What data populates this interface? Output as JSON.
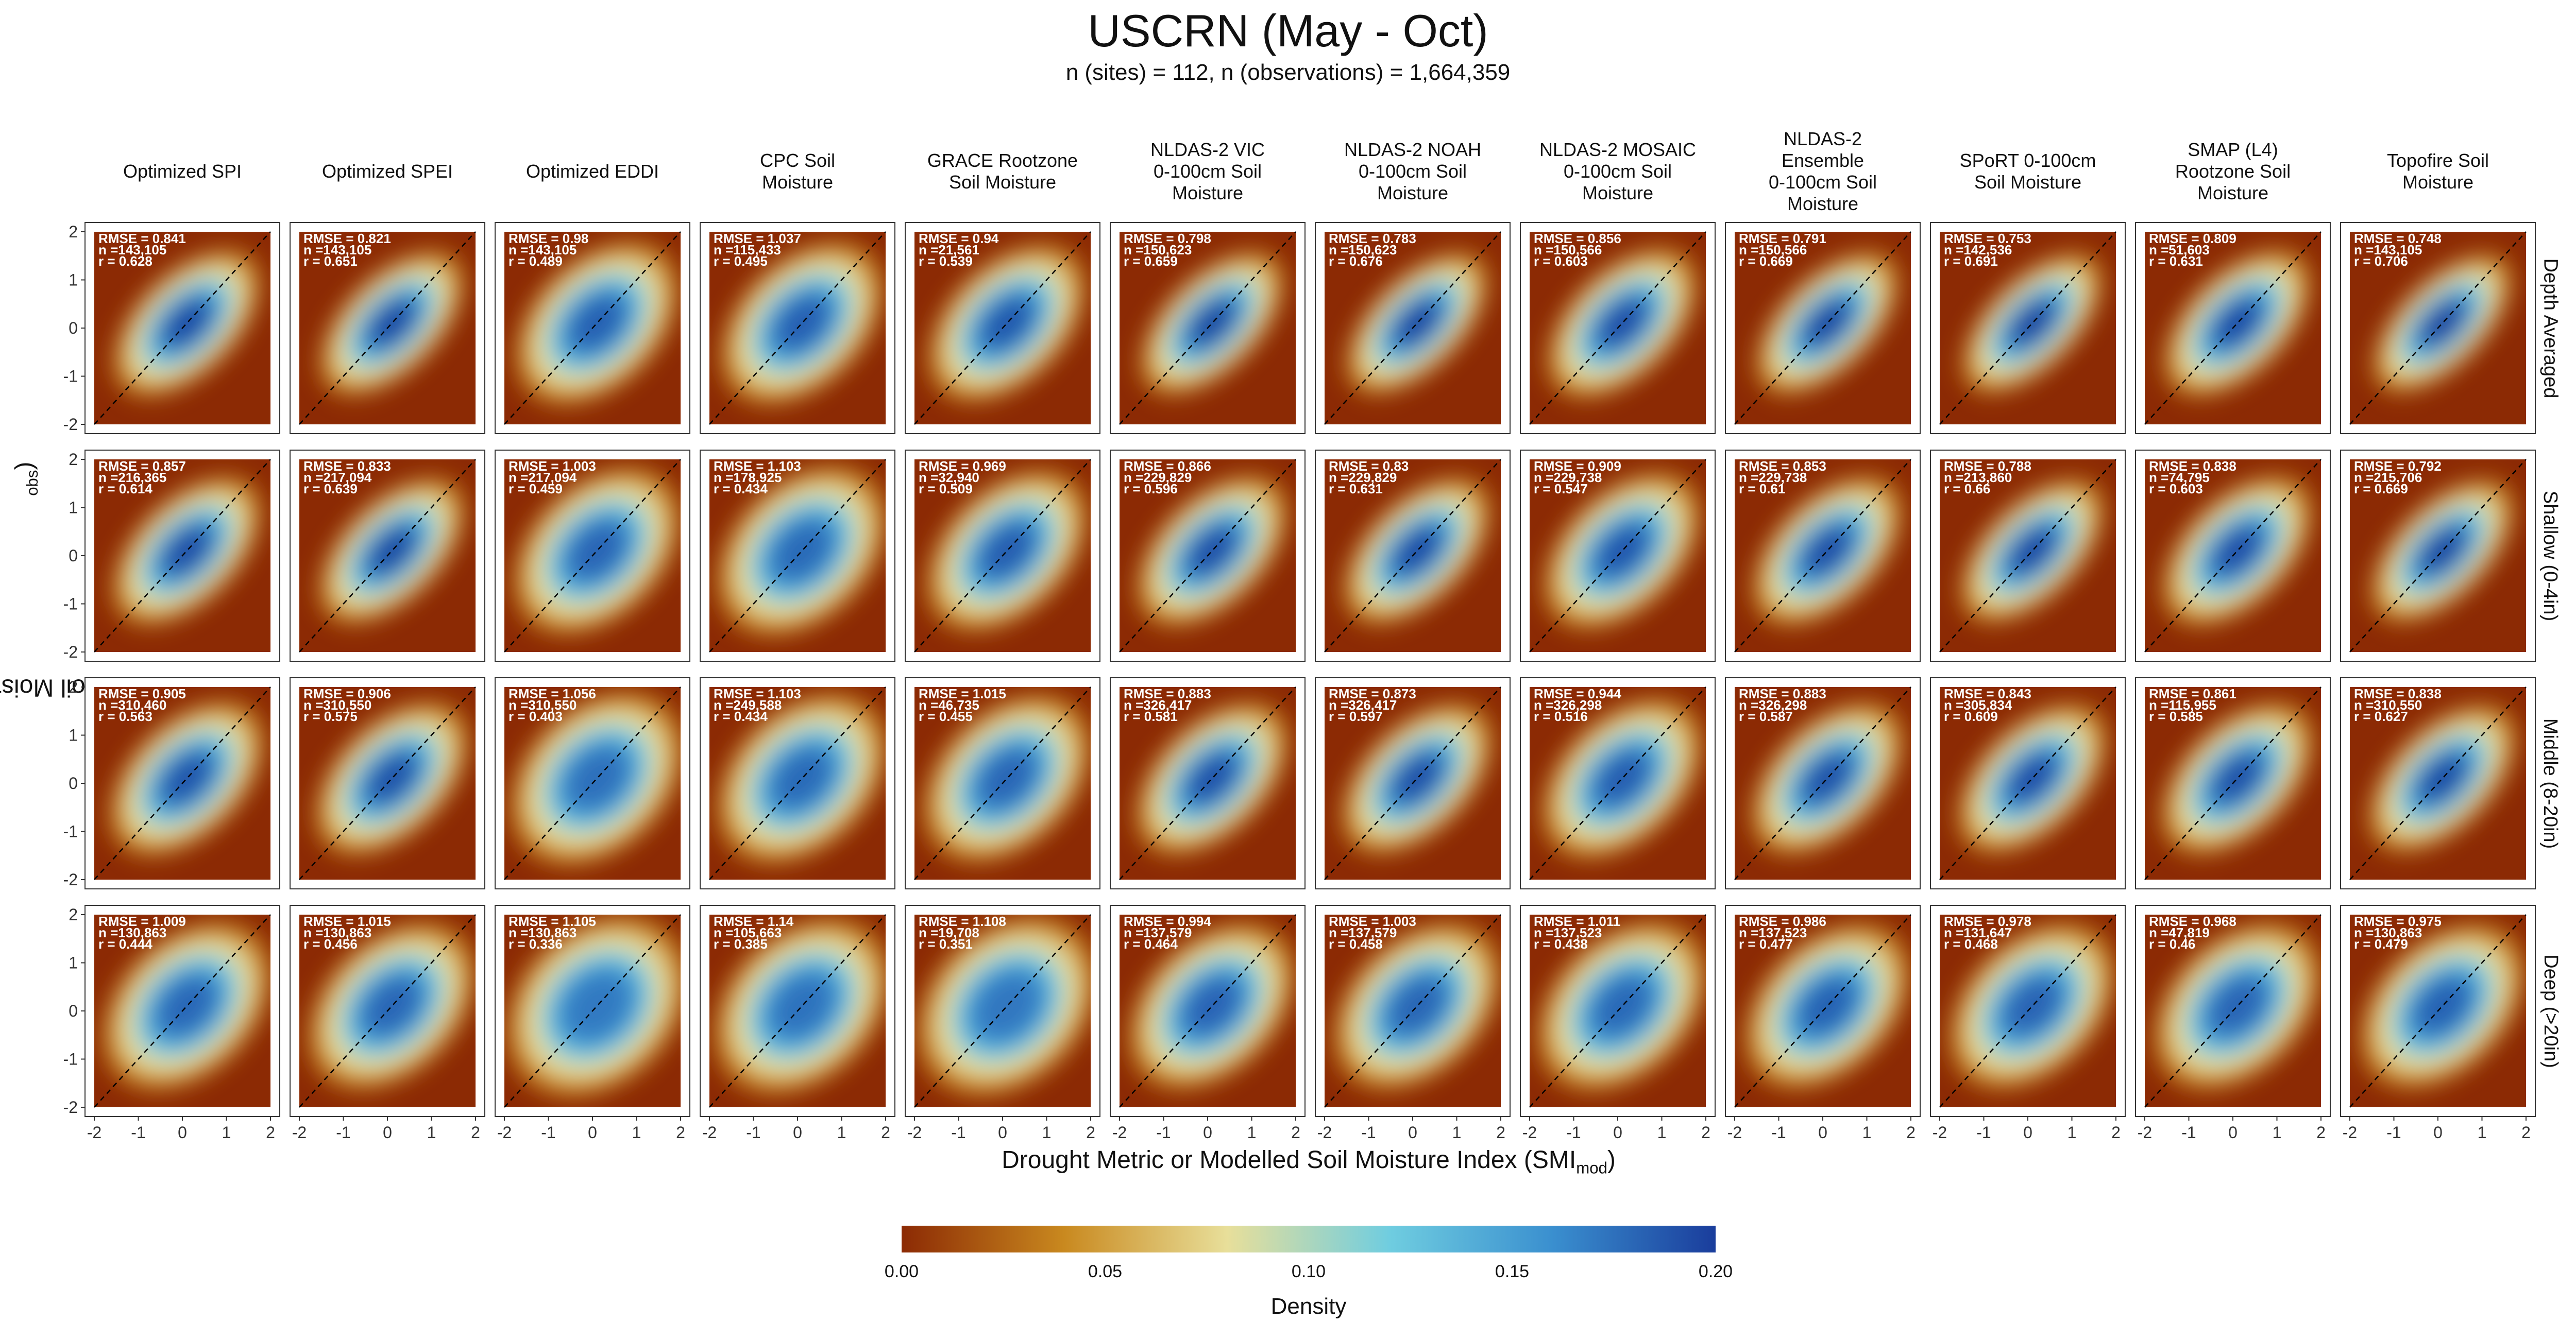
{
  "header": {
    "title": "USCRN (May - Oct)",
    "subtitle": "n (sites) = 112, n (observations) = 1,664,359"
  },
  "axes": {
    "ylabel_main": "Observed Soil Moisture Index (SMI",
    "ylabel_sub": "obs",
    "xlabel_main": "Drought Metric or Modelled Soil Moisture Index (SMI",
    "xlabel_sub": "mod"
  },
  "colorbar": {
    "title": "Density",
    "ticks": [
      "0.00",
      "0.05",
      "0.10",
      "0.15",
      "0.20"
    ],
    "stops": [
      "#8c2a04",
      "#c9891f",
      "#e8df9a",
      "#6fcde0",
      "#3a8fcf",
      "#1a3d9c"
    ]
  },
  "chart_data": {
    "type": "heatmap",
    "panel_type": "2d-density",
    "xlim": [
      -2,
      2
    ],
    "ylim": [
      -2,
      2
    ],
    "x_ticks": [
      "-2",
      "-1",
      "0",
      "1",
      "2"
    ],
    "y_ticks": [
      "-2",
      "-1",
      "0",
      "1",
      "2"
    ],
    "columns": [
      "Optimized SPI",
      "Optimized SPEI",
      "Optimized EDDI",
      "CPC Soil Moisture",
      "GRACE Rootzone Soil Moisture",
      "NLDAS-2 VIC 0-100cm Soil Moisture",
      "NLDAS-2 NOAH 0-100cm Soil Moisture",
      "NLDAS-2 MOSAIC 0-100cm Soil Moisture",
      "NLDAS-2 Ensemble 0-100cm Soil Moisture",
      "SPoRT 0-100cm Soil Moisture",
      "SMAP (L4) Rootzone Soil Moisture",
      "Topofire Soil Moisture"
    ],
    "column_lines": [
      [
        "Optimized SPI"
      ],
      [
        "Optimized SPEI"
      ],
      [
        "Optimized EDDI"
      ],
      [
        "CPC Soil",
        "Moisture"
      ],
      [
        "GRACE Rootzone",
        "Soil Moisture"
      ],
      [
        "NLDAS-2 VIC",
        "0-100cm Soil",
        "Moisture"
      ],
      [
        "NLDAS-2 NOAH",
        "0-100cm Soil",
        "Moisture"
      ],
      [
        "NLDAS-2 MOSAIC",
        "0-100cm Soil",
        "Moisture"
      ],
      [
        "NLDAS-2",
        "Ensemble",
        "0-100cm Soil",
        "Moisture"
      ],
      [
        "SPoRT 0-100cm",
        "Soil Moisture"
      ],
      [
        "SMAP (L4)",
        "Rootzone Soil",
        "Moisture"
      ],
      [
        "Topofire Soil",
        "Moisture"
      ]
    ],
    "rows": [
      "Depth Averaged",
      "Shallow (0-4in)",
      "Middle (8-20in)",
      "Deep (>20in)"
    ],
    "rmse": [
      [
        "0.841",
        "0.821",
        "0.98",
        "1.037",
        "0.94",
        "0.798",
        "0.783",
        "0.856",
        "0.791",
        "0.753",
        "0.809",
        "0.748"
      ],
      [
        "0.857",
        "0.833",
        "1.003",
        "1.103",
        "0.969",
        "0.866",
        "0.83",
        "0.909",
        "0.853",
        "0.788",
        "0.838",
        "0.792"
      ],
      [
        "0.905",
        "0.906",
        "1.056",
        "1.103",
        "1.015",
        "0.883",
        "0.873",
        "0.944",
        "0.883",
        "0.843",
        "0.861",
        "0.838"
      ],
      [
        "1.009",
        "1.015",
        "1.105",
        "1.14",
        "1.108",
        "0.994",
        "1.003",
        "1.011",
        "0.986",
        "0.978",
        "0.968",
        "0.975"
      ]
    ],
    "n": [
      [
        "143,105",
        "143,105",
        "143,105",
        "115,433",
        "21,561",
        "150,623",
        "150,623",
        "150,566",
        "150,566",
        "142,536",
        "51,603",
        "143,105"
      ],
      [
        "216,365",
        "217,094",
        "217,094",
        "178,925",
        "32,940",
        "229,829",
        "229,829",
        "229,738",
        "229,738",
        "213,860",
        "74,795",
        "215,706"
      ],
      [
        "310,460",
        "310,550",
        "310,550",
        "249,588",
        "46,735",
        "326,417",
        "326,417",
        "326,298",
        "326,298",
        "305,834",
        "115,955",
        "310,550"
      ],
      [
        "130,863",
        "130,863",
        "130,863",
        "105,663",
        "19,708",
        "137,579",
        "137,579",
        "137,523",
        "137,523",
        "131,647",
        "47,819",
        "130,863"
      ]
    ],
    "r": [
      [
        "0.628",
        "0.651",
        "0.489",
        "0.495",
        "0.539",
        "0.659",
        "0.676",
        "0.603",
        "0.669",
        "0.691",
        "0.631",
        "0.706"
      ],
      [
        "0.614",
        "0.639",
        "0.459",
        "0.434",
        "0.509",
        "0.596",
        "0.631",
        "0.547",
        "0.61",
        "0.66",
        "0.603",
        "0.669"
      ],
      [
        "0.563",
        "0.575",
        "0.403",
        "0.434",
        "0.455",
        "0.581",
        "0.597",
        "0.516",
        "0.587",
        "0.609",
        "0.585",
        "0.627"
      ],
      [
        "0.444",
        "0.456",
        "0.336",
        "0.385",
        "0.351",
        "0.464",
        "0.458",
        "0.438",
        "0.477",
        "0.468",
        "0.46",
        "0.479"
      ]
    ]
  }
}
